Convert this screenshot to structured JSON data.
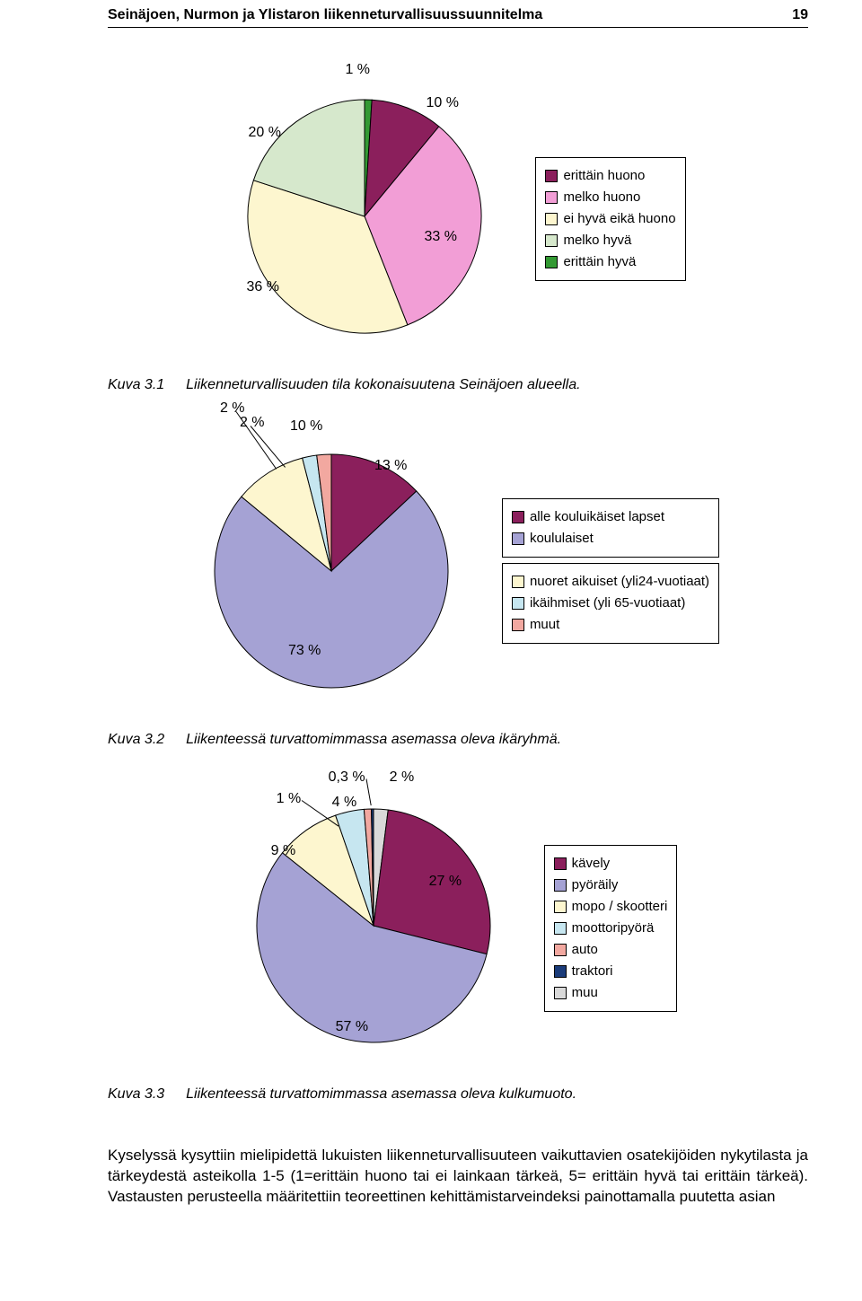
{
  "header": {
    "title": "Seinäjoen, Nurmon ja Ylistaron liikenneturvallisuussuunnitelma",
    "page_number": "19"
  },
  "chart1": {
    "type": "pie",
    "labels": [
      "1 %",
      "10 %",
      "33 %",
      "36 %",
      "20 %"
    ],
    "values": [
      1,
      10,
      33,
      36,
      20
    ],
    "colors": [
      "#339933",
      "#8b1f5c",
      "#f29ed6",
      "#fdf6cf",
      "#d6e8cc"
    ],
    "border_color": "#000000",
    "legend": [
      {
        "label": "erittäin huono",
        "color": "#8b1f5c"
      },
      {
        "label": "melko huono",
        "color": "#f29ed6"
      },
      {
        "label": "ei hyvä eikä huono",
        "color": "#fdf6cf"
      },
      {
        "label": "melko hyvä",
        "color": "#d6e8cc"
      },
      {
        "label": "erittäin hyvä",
        "color": "#339933"
      }
    ],
    "caption_id": "Kuva 3.1",
    "caption_text": "Liikenneturvallisuuden tila kokonaisuutena Seinäjoen alueella."
  },
  "chart2": {
    "type": "pie",
    "labels": [
      "13 %",
      "73 %",
      "10 %",
      "2 %",
      "2 %"
    ],
    "values": [
      13,
      73,
      10,
      2,
      2
    ],
    "colors": [
      "#8b1f5c",
      "#a5a2d4",
      "#fdf6cf",
      "#c6e6f0",
      "#f2a8a0"
    ],
    "border_color": "#000000",
    "legend_group_a": [
      {
        "label": "alle kouluikäiset lapset",
        "color": "#8b1f5c"
      },
      {
        "label": "koululaiset",
        "color": "#a5a2d4"
      }
    ],
    "legend_group_b": [
      {
        "label": "nuoret aikuiset (yli24-vuotiaat)",
        "color": "#fdf6cf"
      },
      {
        "label": "ikäihmiset (yli 65-vuotiaat)",
        "color": "#c6e6f0"
      },
      {
        "label": "muut",
        "color": "#f2a8a0"
      }
    ],
    "caption_id": "Kuva 3.2",
    "caption_text": "Liikenteessä turvattomimmassa asemassa oleva ikäryhmä."
  },
  "chart3": {
    "type": "pie",
    "labels": [
      "2 %",
      "27 %",
      "57 %",
      "9 %",
      "4 %",
      "1 %",
      "0,3 %"
    ],
    "values": [
      2,
      27,
      57,
      9,
      4,
      1,
      0.3
    ],
    "colors": [
      "#d9d9d9",
      "#8b1f5c",
      "#a5a2d4",
      "#fdf6cf",
      "#c6e6f0",
      "#f2a8a0",
      "#1b3c7a"
    ],
    "border_color": "#000000",
    "legend": [
      {
        "label": "kävely",
        "color": "#8b1f5c"
      },
      {
        "label": "pyöräily",
        "color": "#a5a2d4"
      },
      {
        "label": "mopo / skootteri",
        "color": "#fdf6cf"
      },
      {
        "label": "moottoripyörä",
        "color": "#c6e6f0"
      },
      {
        "label": "auto",
        "color": "#f2a8a0"
      },
      {
        "label": "traktori",
        "color": "#1b3c7a"
      },
      {
        "label": "muu",
        "color": "#d9d9d9"
      }
    ],
    "caption_id": "Kuva 3.3",
    "caption_text": "Liikenteessä turvattomimmassa asemassa oleva kulkumuoto."
  },
  "body_paragraph": "Kyselyssä kysyttiin mielipidettä lukuisten liikenneturvallisuuteen vaikuttavien osatekijöiden nykytilasta ja tärkeydestä asteikolla 1-5 (1=erittäin huono tai ei lainkaan tärkeä, 5= erittäin hyvä tai erittäin tärkeä). Vastausten perusteella määritettiin teoreettinen kehittämistarveindeksi painottamalla puutetta asian"
}
